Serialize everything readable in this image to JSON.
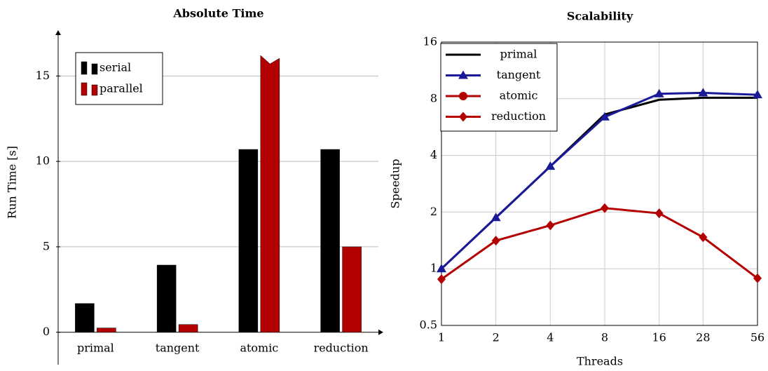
{
  "charts": [
    {
      "type": "bar",
      "title": "Absolute Time",
      "ylabel": "Run Time [s]",
      "categories": [
        "primal",
        "tangent",
        "atomic",
        "reduction"
      ],
      "series": [
        {
          "name": "serial",
          "color": "#000000",
          "values": [
            1.68,
            3.93,
            10.7,
            10.7
          ]
        },
        {
          "name": "parallel",
          "color": "#b30000",
          "values": [
            0.25,
            0.45,
            16.2,
            5.0
          ]
        }
      ],
      "ylim": [
        -1.9,
        17.6
      ],
      "yticks": [
        0,
        5,
        10,
        15
      ],
      "grid": true,
      "legend": "upper left"
    },
    {
      "type": "line",
      "title": "Scalability",
      "xlabel": "Threads",
      "ylabel": "Speedup",
      "x": [
        1,
        2,
        4,
        8,
        16,
        28,
        56
      ],
      "series": [
        {
          "name": "primal",
          "color": "#000000",
          "marker": "none",
          "values": [
            1.0,
            1.87,
            3.5,
            6.6,
            7.9,
            8.1,
            8.1
          ]
        },
        {
          "name": "tangent",
          "color": "#1a1a99",
          "marker": "triangle",
          "values": [
            1.0,
            1.87,
            3.5,
            6.4,
            8.5,
            8.6,
            8.4
          ]
        },
        {
          "name": "atomic",
          "color": "#b30000",
          "marker": "circle",
          "values": [
            null,
            null,
            null,
            null,
            null,
            null,
            null
          ]
        },
        {
          "name": "reduction",
          "color": "#b30000",
          "marker": "diamond",
          "values": [
            0.88,
            1.41,
            1.7,
            2.1,
            1.97,
            1.47,
            0.89
          ]
        }
      ],
      "xlim": [
        1,
        56
      ],
      "xticks": [
        1,
        2,
        4,
        8,
        16,
        28,
        56
      ],
      "ylim": [
        0.5,
        16
      ],
      "yticks": [
        0.5,
        1,
        2,
        4,
        8,
        16
      ],
      "xscale": "log",
      "yscale": "log",
      "grid": true,
      "legend": "upper left"
    }
  ]
}
